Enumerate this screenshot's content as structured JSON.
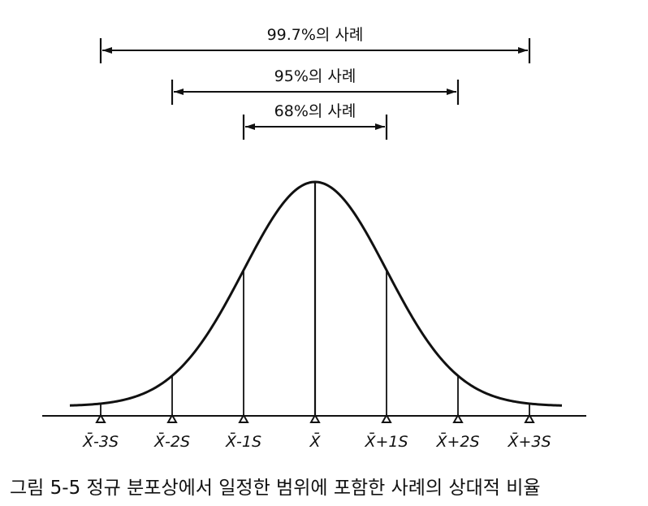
{
  "ranges": [
    {
      "label": "99.7%의 사례",
      "sigma": 3
    },
    {
      "label": "95%의 사례",
      "sigma": 2
    },
    {
      "label": "68%의 사례",
      "sigma": 1
    }
  ],
  "ticks": [
    {
      "k": -3,
      "label": "X̄-3S"
    },
    {
      "k": -2,
      "label": "X̄-2S"
    },
    {
      "k": -1,
      "label": "X̄-1S"
    },
    {
      "k": 0,
      "label": "X̄"
    },
    {
      "k": 1,
      "label": "X̄+1S"
    },
    {
      "k": 2,
      "label": "X̄+2S"
    },
    {
      "k": 3,
      "label": "X̄+3S"
    }
  ],
  "caption": "그림 5-5  정규 분포상에서 일정한 범위에 포함한 사례의 상대적 비율"
}
